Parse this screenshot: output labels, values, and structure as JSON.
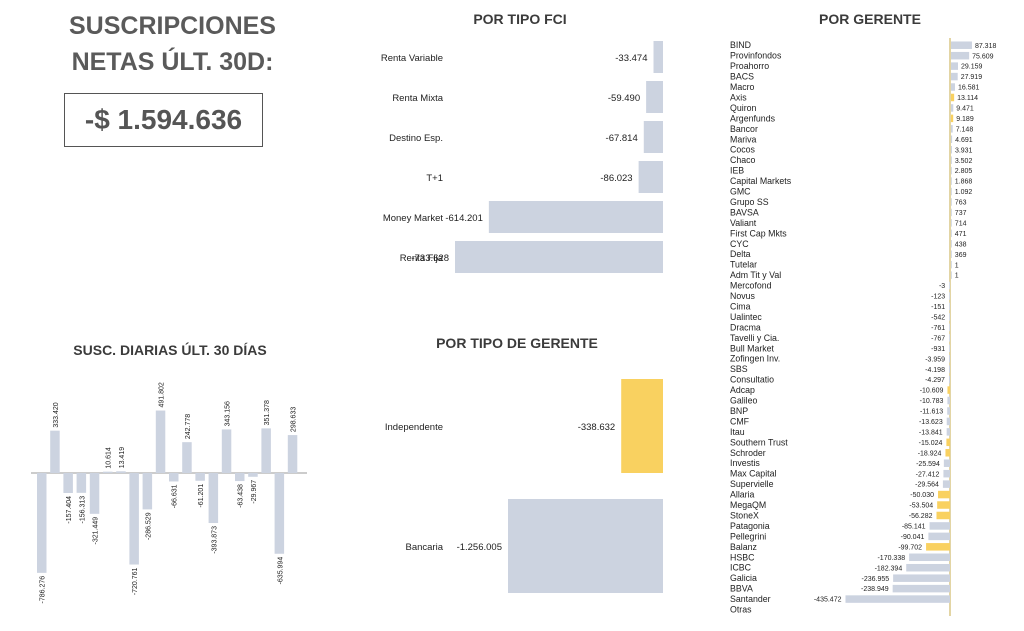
{
  "headline": {
    "line1": "SUSCRIPCIONES",
    "line2": "NETAS ÚLT. 30D:"
  },
  "total": "-$ 1.594.636",
  "colors": {
    "bar": "#ccd3e0",
    "highlight": "#f9d160",
    "axis": "#c7ab4a"
  },
  "chart_data": [
    {
      "id": "por-tipo-fci",
      "type": "bar",
      "orientation": "horizontal",
      "title": "POR TIPO FCI",
      "categories": [
        "Renta Variable",
        "Renta Mixta",
        "Destino Esp.",
        "T+1",
        "Money Market",
        "Renta Fija"
      ],
      "values": [
        -33474,
        -59490,
        -67814,
        -86023,
        -614201,
        -733628
      ],
      "labels": [
        "-33.474",
        "-59.490",
        "-67.814",
        "-86.023",
        "-614.201",
        "-733.628"
      ]
    },
    {
      "id": "por-tipo-gerente",
      "type": "bar",
      "orientation": "horizontal",
      "title": "POR TIPO DE GERENTE",
      "categories": [
        "Independente",
        "Bancaria"
      ],
      "values": [
        -338632,
        -1256005
      ],
      "labels": [
        "-338.632",
        "-1.256.005"
      ],
      "highlight": [
        true,
        false
      ]
    },
    {
      "id": "susc-diarias",
      "type": "bar",
      "orientation": "vertical",
      "title": "SUSC. DIARIAS ÚLT. 30 DÍAS",
      "values": [
        -786276,
        333420,
        -157404,
        -156313,
        -321449,
        10614,
        13419,
        -720761,
        -286529,
        491802,
        -66631,
        242778,
        -61201,
        -393873,
        343156,
        -63438,
        -29967,
        351378,
        -635994,
        298633
      ],
      "labels": [
        "-786.276",
        "333.420",
        "-157.404",
        "-156.313",
        "-321.449",
        "10.614",
        "13.419",
        "-720.761",
        "-286.529",
        "491.802",
        "-66.631",
        "242.778",
        "-61.201",
        "-393.873",
        "343.156",
        "-63.438",
        "-29.967",
        "351.378",
        "-635.994",
        "298.633"
      ]
    },
    {
      "id": "por-gerente",
      "type": "bar",
      "orientation": "horizontal",
      "title": "POR GERENTE",
      "categories": [
        "BIND",
        "Provinfondos",
        "Proahorro",
        "BACS",
        "Macro",
        "Axis",
        "Quiron",
        "Argenfunds",
        "Bancor",
        "Mariva",
        "Cocos",
        "Chaco",
        "IEB",
        "Capital Markets",
        "GMC",
        "Grupo SS",
        "BAVSA",
        "Valiant",
        "First Cap Mkts",
        "CYC",
        "Delta",
        "Tutelar",
        "Adm Tit y Val",
        "Mercofond",
        "Novus",
        "Cima",
        "Ualintec",
        "Dracma",
        "Tavelli y Cia.",
        "Bull Market",
        "Zofingen Inv.",
        "SBS",
        "Consultatio",
        "Adcap",
        "Galileo",
        "BNP",
        "CMF",
        "Itau",
        "Southern Trust",
        "Schroder",
        "Investis",
        "Max Capital",
        "Supervielle",
        "Allaria",
        "MegaQM",
        "StoneX",
        "Patagonia",
        "Pellegrini",
        "Balanz",
        "HSBC",
        "ICBC",
        "Galicia",
        "BBVA",
        "Santander",
        "Otras"
      ],
      "values": [
        87318,
        75609,
        29159,
        27919,
        16581,
        13114,
        9471,
        9189,
        7148,
        4691,
        3931,
        3502,
        2805,
        1868,
        1092,
        763,
        737,
        714,
        471,
        438,
        369,
        1,
        1,
        -3,
        -123,
        -151,
        -542,
        -761,
        -767,
        -931,
        -3959,
        -4198,
        -4297,
        -10609,
        -10783,
        -11613,
        -13623,
        -13841,
        -15024,
        -18924,
        -25594,
        -27412,
        -29564,
        -50030,
        -53504,
        -56282,
        -85141,
        -90041,
        -99702,
        -170338,
        -182394,
        -236955,
        -238949,
        -435472,
        null
      ],
      "labels": [
        "87.318",
        "75.609",
        "29.159",
        "27.919",
        "16.581",
        "13.114",
        "9.471",
        "9.189",
        "7.148",
        "4.691",
        "3.931",
        "3.502",
        "2.805",
        "1.868",
        "1.092",
        "763",
        "737",
        "714",
        "471",
        "438",
        "369",
        "1",
        "1",
        "-3",
        "-123",
        "-151",
        "-542",
        "-761",
        "-767",
        "-931",
        "-3.959",
        "-4.198",
        "-4.297",
        "-10.609",
        "-10.783",
        "-11.613",
        "-13.623",
        "-13.841",
        "-15.024",
        "-18.924",
        "-25.594",
        "-27.412",
        "-29.564",
        "-50.030",
        "-53.504",
        "-56.282",
        "-85.141",
        "-90.041",
        "-99.702",
        "-170.338",
        "-182.394",
        "-236.955",
        "-238.949",
        "-435.472",
        ""
      ],
      "highlight": [
        "Axis",
        "Argenfunds",
        "Adcap",
        "Southern Trust",
        "Schroder",
        "Allaria",
        "MegaQM",
        "StoneX",
        "Balanz"
      ]
    }
  ]
}
